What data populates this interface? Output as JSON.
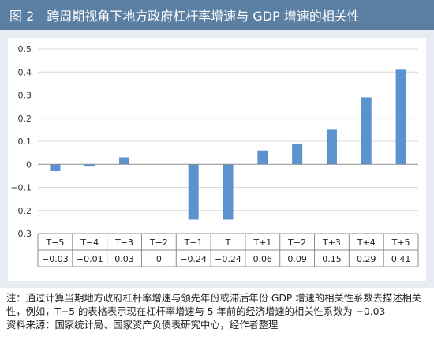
{
  "figure": {
    "number": "图 2",
    "title": "跨周期视角下地方政府杠杆率增速与 GDP 增速的相关性"
  },
  "chart_data": {
    "type": "bar",
    "categories": [
      "T−5",
      "T−4",
      "T−3",
      "T−2",
      "T−1",
      "T",
      "T+1",
      "T+2",
      "T+3",
      "T+4",
      "T+5"
    ],
    "values": [
      -0.03,
      -0.01,
      0.03,
      0,
      -0.24,
      -0.24,
      0.06,
      0.09,
      0.15,
      0.29,
      0.41
    ],
    "value_labels": [
      "−0.03",
      "−0.01",
      "0.03",
      "0",
      "−0.24",
      "−0.24",
      "0.06",
      "0.09",
      "0.15",
      "0.29",
      "0.41"
    ],
    "ylim": [
      -0.3,
      0.5
    ],
    "yticks": [
      "0.5",
      "0.4",
      "0.3",
      "0.2",
      "0.1",
      "0",
      "−0.1",
      "−0.2",
      "−0.3"
    ],
    "ytick_values": [
      0.5,
      0.4,
      0.3,
      0.2,
      0.1,
      0,
      -0.1,
      -0.2,
      -0.3
    ],
    "grid": true,
    "data_table": true,
    "bar_color": "#5b93cf"
  },
  "notes": {
    "note": "注：通过计算当期地方政府杠杆率增速与领先年份或滞后年份 GDP 增速的相关性系数去描述相关性，例如，T−5 的表格表示现在杠杆率增速与 5 年前的经济增速的相关性系数为 −0.03",
    "source": "资料来源：国家统计局、国家资产负债表研究中心，经作者整理"
  }
}
